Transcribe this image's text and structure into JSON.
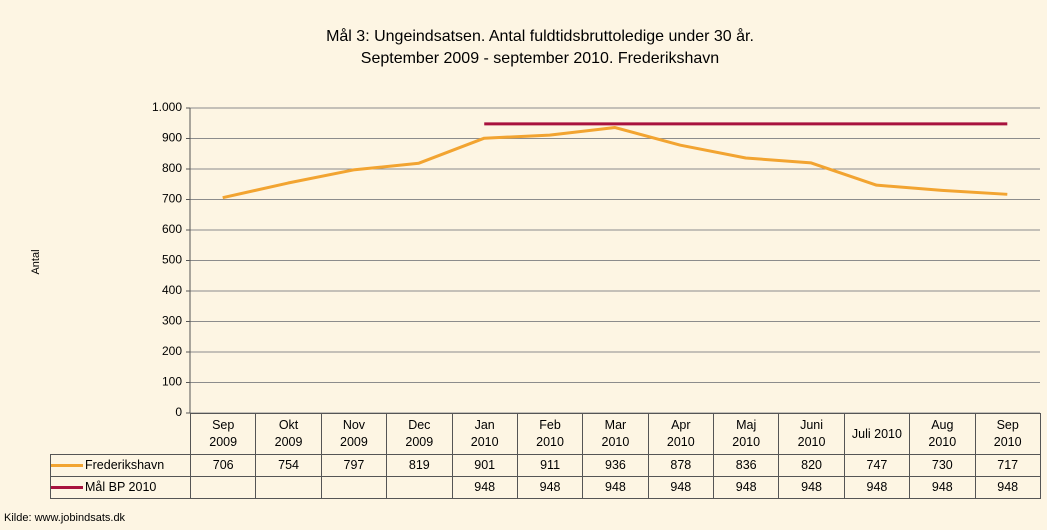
{
  "chart_data": {
    "type": "line",
    "title": "Mål 3: Ungeindsatsen. Antal fuldtidsbruttoledige under 30 år.",
    "subtitle": "September 2009 - september 2010. Frederikshavn",
    "y_label": "Antal",
    "source": "Kilde: www.jobindsats.dk",
    "categories": [
      "Sep\n2009",
      "Okt\n2009",
      "Nov\n2009",
      "Dec\n2009",
      "Jan\n2010",
      "Feb\n2010",
      "Mar\n2010",
      "Apr\n2010",
      "Maj\n2010",
      "Juni\n2010",
      "Juli 2010",
      "Aug\n2010",
      "Sep\n2010"
    ],
    "series": [
      {
        "name": "Frederikshavn",
        "color": "#f2a431",
        "values": [
          706,
          754,
          797,
          819,
          901,
          911,
          936,
          878,
          836,
          820,
          747,
          730,
          717
        ]
      },
      {
        "name": "Mål BP 2010",
        "color": "#a8123e",
        "values": [
          null,
          null,
          null,
          null,
          948,
          948,
          948,
          948,
          948,
          948,
          948,
          948,
          948
        ]
      }
    ],
    "ylim": [
      0,
      1000
    ],
    "yticks": [
      0,
      100,
      200,
      300,
      400,
      500,
      600,
      700,
      800,
      900,
      {
        "value": 1000,
        "label": "1.000"
      }
    ],
    "grid": true
  }
}
